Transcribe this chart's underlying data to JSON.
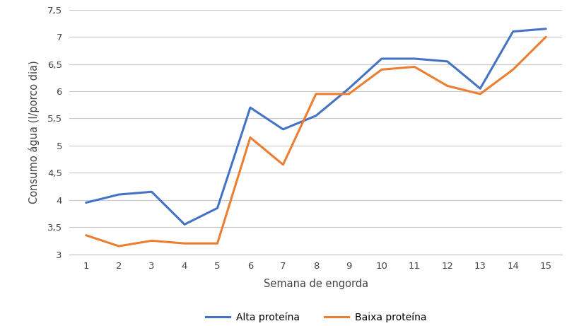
{
  "weeks": [
    1,
    2,
    3,
    4,
    5,
    6,
    7,
    8,
    9,
    10,
    11,
    12,
    13,
    14,
    15
  ],
  "alta_proteina": [
    3.95,
    4.1,
    4.15,
    3.55,
    3.85,
    5.7,
    5.3,
    5.55,
    6.05,
    6.6,
    6.6,
    6.55,
    6.05,
    7.1,
    7.15
  ],
  "baixa_proteina": [
    3.35,
    3.15,
    3.25,
    3.2,
    3.2,
    5.15,
    4.65,
    5.95,
    5.95,
    6.4,
    6.45,
    6.1,
    5.95,
    6.4,
    7.0
  ],
  "alta_color": "#4472C4",
  "baixa_color": "#ED7D31",
  "xlabel": "Semana de engorda",
  "ylabel": "Consumo água (l/porco dia)",
  "ylim_min": 3.0,
  "ylim_max": 7.5,
  "yticks": [
    3.0,
    3.5,
    4.0,
    4.5,
    5.0,
    5.5,
    6.0,
    6.5,
    7.0,
    7.5
  ],
  "ytick_labels": [
    "3",
    "3,5",
    "4",
    "4,5",
    "5",
    "5,5",
    "6",
    "6,5",
    "7",
    "7,5"
  ],
  "legend_alta": "Alta proteína",
  "legend_baixa": "Baixa proteína",
  "line_width": 2.2,
  "background_color": "#ffffff",
  "grid_color": "#c8c8c8",
  "spine_color": "#c0c0c0",
  "tick_label_fontsize": 9.5,
  "axis_label_fontsize": 10.5,
  "legend_fontsize": 10
}
